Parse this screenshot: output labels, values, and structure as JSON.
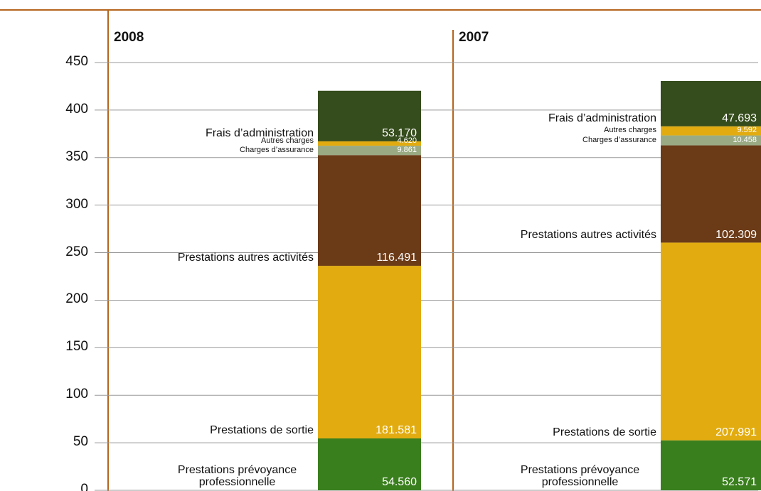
{
  "chart_data": {
    "type": "stacked_bar",
    "categories": [
      "2008",
      "2007"
    ],
    "series": [
      {
        "name": "Prestations prévoyance professionnelle",
        "color": "#3a7f1e",
        "values": [
          54.56,
          52.571
        ],
        "value_labels": [
          "54.560",
          "52.571"
        ]
      },
      {
        "name": "Prestations de sortie",
        "color": "#e2ac11",
        "values": [
          181.581,
          207.991
        ],
        "value_labels": [
          "181.581",
          "207.991"
        ]
      },
      {
        "name": "Prestations autres activités",
        "color": "#6b3a17",
        "values": [
          116.491,
          102.309
        ],
        "value_labels": [
          "116.491",
          "102.309"
        ]
      },
      {
        "name": "Charges d’assurance",
        "color": "#9aab84",
        "values": [
          9.861,
          10.458
        ],
        "value_labels": [
          "9.861",
          "10.458"
        ]
      },
      {
        "name": "Autres charges",
        "color": "#e2ac11",
        "values": [
          4.62,
          9.592
        ],
        "value_labels": [
          "4.620",
          "9.592"
        ]
      },
      {
        "name": "Frais d’administration",
        "color": "#354c1c",
        "values": [
          53.17,
          47.693
        ],
        "value_labels": [
          "53.170",
          "47.693"
        ]
      }
    ],
    "ylim": [
      0,
      450
    ],
    "yticks": [
      0,
      50,
      100,
      150,
      200,
      250,
      300,
      350,
      400,
      450
    ],
    "grid": true
  }
}
